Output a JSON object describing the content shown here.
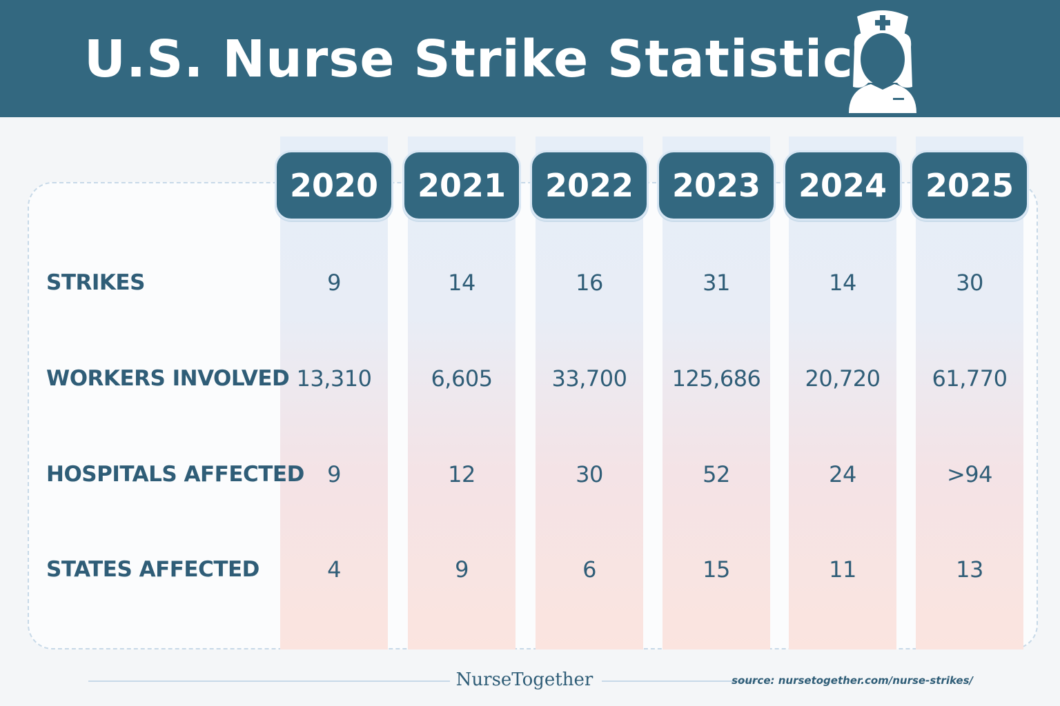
{
  "title": "U.S. Nurse Strike Statistics",
  "colors": {
    "header": "#336880",
    "text": "#2f5d77",
    "column_top": "#e6eef8",
    "column_bottom": "#fbe4df"
  },
  "chart_data": {
    "type": "table",
    "title": "U.S. Nurse Strike Statistics",
    "columns": [
      "2020",
      "2021",
      "2022",
      "2023",
      "2024",
      "2025"
    ],
    "rows": [
      {
        "label": "STRIKES",
        "values": [
          "9",
          "14",
          "16",
          "31",
          "14",
          "30"
        ]
      },
      {
        "label": "WORKERS INVOLVED",
        "values": [
          "13,310",
          "6,605",
          "33,700",
          "125,686",
          "20,720",
          "61,770"
        ]
      },
      {
        "label": "HOSPITALS AFFECTED",
        "values": [
          "9",
          "12",
          "30",
          "52",
          "24",
          ">94"
        ]
      },
      {
        "label": "STATES AFFECTED",
        "values": [
          "4",
          "9",
          "6",
          "15",
          "11",
          "13"
        ]
      }
    ]
  },
  "footer": {
    "brand": "NurseTogether",
    "source": "source: nursetogether.com/nurse-strikes/"
  }
}
